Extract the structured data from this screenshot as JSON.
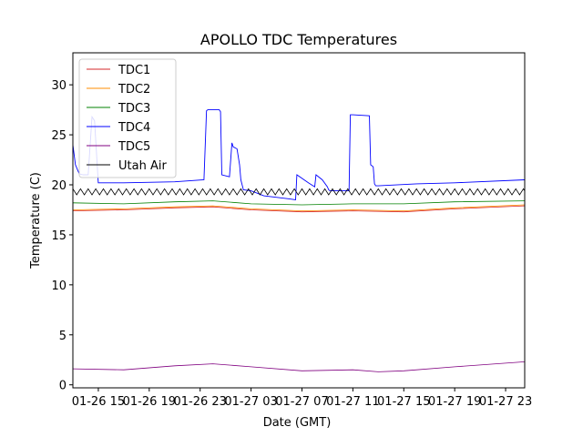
{
  "chart_data": {
    "type": "line",
    "title": "APOLLO TDC Temperatures",
    "xlabel": "Date (GMT)",
    "ylabel": "Temperature (C)",
    "xlim_hours": [
      -2.0,
      33.5
    ],
    "ylim": [
      -0.3,
      33.2
    ],
    "grid": false,
    "legend_position": "top-left",
    "x_tick_labels": [
      {
        "hour": 0,
        "label": "01-26 15"
      },
      {
        "hour": 4,
        "label": "01-26 19"
      },
      {
        "hour": 8,
        "label": "01-26 23"
      },
      {
        "hour": 12,
        "label": "01-27 03"
      },
      {
        "hour": 16,
        "label": "01-27 07"
      },
      {
        "hour": 20,
        "label": "01-27 11"
      },
      {
        "hour": 24,
        "label": "01-27 15"
      },
      {
        "hour": 28,
        "label": "01-27 19"
      },
      {
        "hour": 32,
        "label": "01-27 23"
      }
    ],
    "y_ticks": [
      0,
      5,
      10,
      15,
      20,
      25,
      30
    ],
    "x_hours_note": "hours since 01-26 15:00 GMT",
    "series": [
      {
        "name": "TDC1",
        "color": "#d62728",
        "x": [
          -2,
          2,
          6,
          9,
          12,
          16,
          20,
          24,
          28,
          33.5
        ],
        "y": [
          17.4,
          17.5,
          17.7,
          17.8,
          17.5,
          17.3,
          17.4,
          17.3,
          17.6,
          17.9
        ]
      },
      {
        "name": "TDC2",
        "color": "#ff8c00",
        "x": [
          -2,
          2,
          6,
          9,
          12,
          16,
          20,
          24,
          28,
          33.5
        ],
        "y": [
          17.5,
          17.6,
          17.8,
          17.9,
          17.6,
          17.4,
          17.5,
          17.4,
          17.7,
          18.0
        ]
      },
      {
        "name": "TDC3",
        "color": "#008000",
        "x": [
          -2,
          2,
          6,
          9,
          12,
          16,
          20,
          24,
          28,
          33.5
        ],
        "y": [
          18.2,
          18.1,
          18.3,
          18.4,
          18.1,
          18.0,
          18.1,
          18.1,
          18.3,
          18.4
        ]
      },
      {
        "name": "TDC4",
        "color": "#0000ff",
        "x": [
          -2,
          -1.8,
          -1.5,
          -1.2,
          -0.8,
          -0.5,
          -0.3,
          0,
          2,
          6,
          8.3,
          8.5,
          8.6,
          9.5,
          9.6,
          9.7,
          10.3,
          10.5,
          10.6,
          10.9,
          11.1,
          11.2,
          11.4,
          12,
          13,
          15,
          15.5,
          15.6,
          16.5,
          17.0,
          17.1,
          17.6,
          18,
          18.1,
          18.2,
          19.7,
          19.8,
          20.0,
          21.3,
          21.4,
          21.6,
          21.7,
          21.8,
          22,
          25,
          28,
          33.5
        ],
        "y": [
          24.0,
          22.0,
          21.1,
          21.0,
          21.0,
          26.8,
          26.4,
          20.2,
          20.2,
          20.3,
          20.5,
          27.4,
          27.5,
          27.5,
          27.3,
          21.0,
          20.8,
          24.2,
          23.8,
          23.6,
          22.0,
          20.5,
          19.5,
          19.4,
          18.9,
          18.6,
          18.5,
          21.0,
          20.2,
          19.8,
          21.0,
          20.5,
          19.8,
          19.5,
          19.4,
          19.4,
          27.0,
          27.0,
          26.9,
          22.0,
          21.8,
          20.1,
          19.9,
          19.9,
          20.1,
          20.2,
          20.5
        ]
      },
      {
        "name": "TDC5",
        "color": "#800080",
        "x": [
          -2,
          2,
          6,
          9,
          12,
          16,
          20,
          22,
          24,
          28,
          33.5
        ],
        "y": [
          1.6,
          1.5,
          1.9,
          2.1,
          1.8,
          1.4,
          1.5,
          1.3,
          1.4,
          1.8,
          2.3
        ]
      },
      {
        "name": "Utah Air",
        "color": "#000000",
        "x": [
          -2,
          33.5
        ],
        "y": [
          19.3,
          19.3
        ],
        "oscillation_amplitude": 0.6,
        "oscillation_period_hours": 0.6
      }
    ]
  }
}
